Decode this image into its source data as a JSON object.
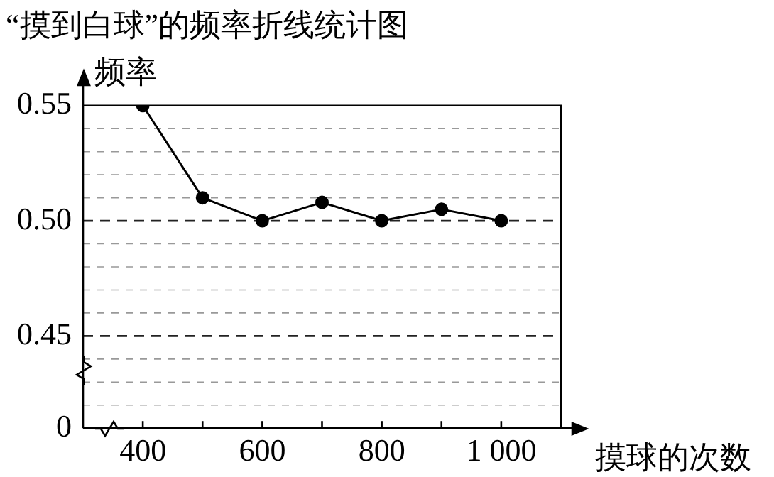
{
  "chart_data": {
    "type": "line",
    "title": "“摸到白球”的频率折线统计图",
    "xlabel": "摸球的次数",
    "ylabel": "频率",
    "x": [
      400,
      500,
      600,
      700,
      800,
      900,
      1000
    ],
    "series": [
      {
        "color": "#000000",
        "values": [
          0.55,
          0.51,
          0.5,
          0.508,
          0.5,
          0.505,
          0.5
        ]
      }
    ],
    "xlim": [
      300,
      1100
    ],
    "xticks": [
      400,
      {
        "value": 500,
        "label": null
      },
      600,
      {
        "value": 700,
        "label": null
      },
      800,
      {
        "value": 900,
        "label": null
      },
      {
        "value": 1000,
        "label": "1 000"
      }
    ],
    "ylim": [
      0.41,
      0.55
    ],
    "yticks": [
      {
        "value": 0.41,
        "label": "0"
      },
      {
        "value": 0.42,
        "label": null
      },
      {
        "value": 0.43,
        "label": null
      },
      {
        "value": 0.44,
        "label": null
      },
      0.45,
      {
        "value": 0.46,
        "label": null
      },
      {
        "value": 0.47,
        "label": null
      },
      {
        "value": 0.48,
        "label": null
      },
      {
        "value": 0.49,
        "label": null
      },
      {
        "value": 0.5,
        "label": "0.50"
      },
      {
        "value": 0.51,
        "label": null
      },
      {
        "value": 0.52,
        "label": null
      },
      {
        "value": 0.53,
        "label": null
      },
      {
        "value": 0.54,
        "label": null
      },
      0.55
    ],
    "grid": "y",
    "marker": "circle",
    "line_style": "solid",
    "legend": false
  }
}
